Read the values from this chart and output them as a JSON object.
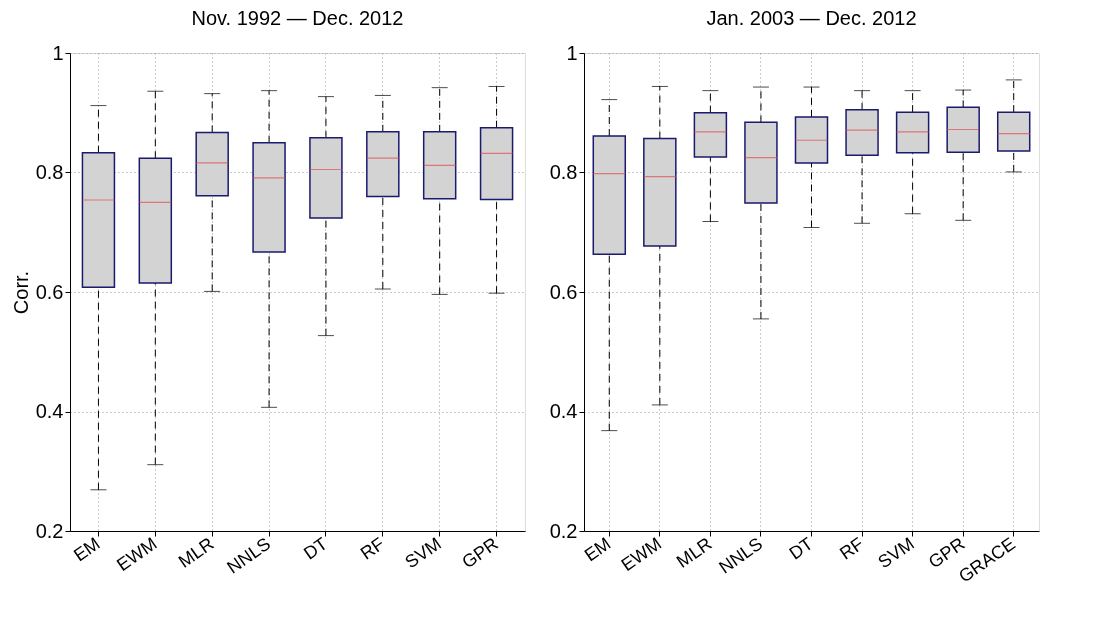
{
  "chart_data": [
    {
      "type": "box",
      "title": "Nov. 1992 — Dec. 2012",
      "ylabel": "Corr.",
      "categories": [
        "EM",
        "EWM",
        "MLR",
        "NNLS",
        "DT",
        "RF",
        "SVM",
        "GPR"
      ],
      "ylim": [
        0.2,
        1
      ],
      "yticks": [
        0.2,
        0.4,
        0.6,
        0.8,
        1
      ],
      "grid": true,
      "series": [
        {
          "color": "#d3d3d3",
          "boxes": [
            {
              "low": 0.269,
              "q1": 0.608,
              "median": 0.754,
              "q3": 0.833,
              "high": 0.912
            },
            {
              "low": 0.311,
              "q1": 0.615,
              "median": 0.75,
              "q3": 0.824,
              "high": 0.936
            },
            {
              "low": 0.601,
              "q1": 0.761,
              "median": 0.816,
              "q3": 0.867,
              "high": 0.932
            },
            {
              "low": 0.407,
              "q1": 0.667,
              "median": 0.791,
              "q3": 0.85,
              "high": 0.937
            },
            {
              "low": 0.527,
              "q1": 0.724,
              "median": 0.805,
              "q3": 0.858,
              "high": 0.927
            },
            {
              "low": 0.605,
              "q1": 0.76,
              "median": 0.824,
              "q3": 0.868,
              "high": 0.929
            },
            {
              "low": 0.596,
              "q1": 0.756,
              "median": 0.812,
              "q3": 0.868,
              "high": 0.942
            },
            {
              "low": 0.598,
              "q1": 0.755,
              "median": 0.832,
              "q3": 0.875,
              "high": 0.944
            }
          ]
        }
      ]
    },
    {
      "type": "box",
      "title": "Jan. 2003 — Dec. 2012",
      "categories": [
        "EM",
        "EWM",
        "MLR",
        "NNLS",
        "DT",
        "RF",
        "SVM",
        "GPR",
        "GRACE"
      ],
      "ylim": [
        0.2,
        1
      ],
      "yticks": [
        0.2,
        0.4,
        0.6,
        0.8,
        1
      ],
      "grid": true,
      "series": [
        {
          "color": "#d3d3d3",
          "boxes": [
            {
              "low": 0.368,
              "q1": 0.663,
              "median": 0.798,
              "q3": 0.861,
              "high": 0.922
            },
            {
              "low": 0.411,
              "q1": 0.677,
              "median": 0.793,
              "q3": 0.857,
              "high": 0.944
            },
            {
              "low": 0.718,
              "q1": 0.826,
              "median": 0.868,
              "q3": 0.9,
              "high": 0.937
            },
            {
              "low": 0.555,
              "q1": 0.749,
              "median": 0.825,
              "q3": 0.884,
              "high": 0.943
            },
            {
              "low": 0.708,
              "q1": 0.816,
              "median": 0.854,
              "q3": 0.893,
              "high": 0.943
            },
            {
              "low": 0.715,
              "q1": 0.829,
              "median": 0.871,
              "q3": 0.905,
              "high": 0.937
            },
            {
              "low": 0.731,
              "q1": 0.833,
              "median": 0.868,
              "q3": 0.901,
              "high": 0.937
            },
            {
              "low": 0.72,
              "q1": 0.834,
              "median": 0.872,
              "q3": 0.909,
              "high": 0.938
            },
            {
              "low": 0.801,
              "q1": 0.836,
              "median": 0.865,
              "q3": 0.901,
              "high": 0.955
            }
          ]
        }
      ]
    }
  ]
}
